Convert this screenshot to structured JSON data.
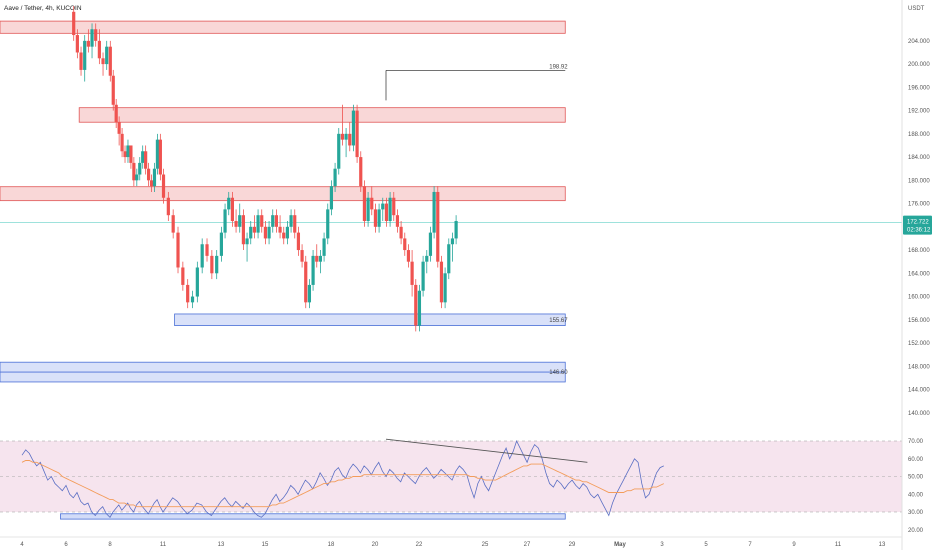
{
  "header": {
    "title": "Aave / Tether, 4h, KUCOIN",
    "currency": "USDT"
  },
  "price_tag": {
    "value": "172.722",
    "countdown": "02:36:12"
  },
  "colors": {
    "up": "#26a69a",
    "down": "#ef5350",
    "resistance_fill": "#f8d0d0",
    "resistance_stroke": "#e05555",
    "support_fill": "#d2dcf8",
    "support_stroke": "#4a6fd6",
    "rsi_line": "#5b6fc4",
    "rsi_ma": "#f39c5a",
    "rsi_band": "#f6e4ee",
    "current_line": "#7fd8d0",
    "trendline": "#555555"
  },
  "chart_data": [
    {
      "type": "candlestick",
      "title": "Aave / Tether, 4h, KUCOIN",
      "y_axis_unit": "USDT",
      "ylim": [
        136,
        210
      ],
      "y_ticks": [
        "140.000",
        "144.000",
        "148.000",
        "152.000",
        "156.000",
        "160.000",
        "164.000",
        "168.000",
        "172.000",
        "176.000",
        "180.000",
        "184.000",
        "188.000",
        "192.000",
        "196.000",
        "200.000",
        "204.000"
      ],
      "x_ticks": [
        "4",
        "6",
        "8",
        "11",
        "13",
        "15",
        "18",
        "20",
        "22",
        "25",
        "27",
        "29",
        "May",
        "3",
        "5",
        "7",
        "9",
        "11",
        "13"
      ],
      "current_price": 172.722,
      "zones": [
        {
          "kind": "resistance",
          "from": 205.3,
          "to": 207.4,
          "start_day": 4.0,
          "end_day": 28.7
        },
        {
          "kind": "resistance",
          "from": 190.0,
          "to": 192.5,
          "start_day": 6.6,
          "end_day": 28.7
        },
        {
          "kind": "resistance",
          "from": 176.5,
          "to": 178.9,
          "start_day": 4.0,
          "end_day": 28.7
        },
        {
          "kind": "support",
          "from": 155.0,
          "to": 157.0,
          "start_day": 11.4,
          "end_day": 28.7,
          "label": "155.67"
        },
        {
          "kind": "support",
          "from": 145.3,
          "to": 148.7,
          "start_day": 4.0,
          "end_day": 28.7,
          "label": "146.60",
          "midline": 147.0
        }
      ],
      "annotations": [
        {
          "type": "hline",
          "value": 198.92,
          "label": "198.92",
          "start_day": 20.5,
          "end_day": 28.7
        }
      ],
      "candles_start_day": 6.35,
      "candles_step_days": 0.1667,
      "ohlc": [
        [
          209,
          210,
          204,
          205
        ],
        [
          205,
          206,
          201,
          202
        ],
        [
          202,
          203,
          198,
          199
        ],
        [
          199,
          205,
          197,
          204
        ],
        [
          204,
          206,
          202,
          203
        ],
        [
          203,
          207,
          201,
          206
        ],
        [
          206,
          207,
          203,
          204
        ],
        [
          204,
          206,
          200,
          201
        ],
        [
          201,
          202,
          198,
          200
        ],
        [
          200,
          204,
          199,
          203
        ],
        [
          203,
          204,
          197,
          198
        ],
        [
          198,
          199,
          192,
          193
        ],
        [
          193,
          194,
          189,
          190
        ],
        [
          190,
          191,
          186,
          188
        ],
        [
          188,
          189,
          184,
          185
        ],
        [
          185,
          186,
          183,
          184
        ],
        [
          184,
          187,
          183,
          186
        ],
        [
          186,
          186,
          182,
          183
        ],
        [
          183,
          184,
          179,
          180
        ],
        [
          180,
          182,
          179,
          181
        ],
        [
          181,
          184,
          180,
          183
        ],
        [
          183,
          186,
          182,
          185
        ],
        [
          185,
          186,
          181,
          182
        ],
        [
          182,
          183,
          179,
          180
        ],
        [
          180,
          181,
          178,
          179
        ],
        [
          179,
          183,
          178,
          182
        ],
        [
          182,
          188,
          181,
          187
        ],
        [
          187,
          188,
          180,
          181
        ],
        [
          181,
          182,
          176,
          177
        ],
        [
          177,
          178,
          173,
          174
        ],
        [
          174,
          175,
          170,
          171
        ],
        [
          171,
          172,
          164,
          165
        ],
        [
          165,
          166,
          161,
          162
        ],
        [
          162,
          163,
          158,
          159
        ],
        [
          159,
          161,
          158,
          160
        ],
        [
          160,
          166,
          159,
          165
        ],
        [
          165,
          170,
          164,
          169
        ],
        [
          169,
          170,
          166,
          167
        ],
        [
          167,
          168,
          163,
          164
        ],
        [
          164,
          168,
          163,
          167
        ],
        [
          167,
          172,
          166,
          171
        ],
        [
          171,
          176,
          170,
          175
        ],
        [
          175,
          178,
          174,
          177
        ],
        [
          177,
          178,
          172,
          173
        ],
        [
          173,
          175,
          171,
          172
        ],
        [
          172,
          176,
          171,
          174
        ],
        [
          174,
          175,
          168,
          169
        ],
        [
          169,
          171,
          166,
          170
        ],
        [
          170,
          173,
          169,
          172
        ],
        [
          172,
          174,
          170,
          171
        ],
        [
          171,
          175,
          170,
          174
        ],
        [
          174,
          175,
          171,
          172
        ],
        [
          172,
          173,
          169,
          170
        ],
        [
          170,
          173,
          169,
          172
        ],
        [
          172,
          175,
          171,
          174
        ],
        [
          174,
          175,
          171,
          172
        ],
        [
          172,
          174,
          170,
          171
        ],
        [
          171,
          172,
          169,
          170
        ],
        [
          170,
          173,
          169,
          172
        ],
        [
          172,
          175,
          171,
          174
        ],
        [
          174,
          175,
          170,
          171
        ],
        [
          171,
          172,
          167,
          168
        ],
        [
          168,
          169,
          165,
          166
        ],
        [
          166,
          167,
          158,
          159
        ],
        [
          159,
          163,
          158,
          162
        ],
        [
          162,
          168,
          161,
          167
        ],
        [
          167,
          169,
          165,
          166
        ],
        [
          166,
          168,
          164,
          167
        ],
        [
          167,
          171,
          166,
          170
        ],
        [
          170,
          176,
          169,
          175
        ],
        [
          175,
          180,
          174,
          179
        ],
        [
          179,
          183,
          178,
          182
        ],
        [
          182,
          189,
          181,
          188
        ],
        [
          188,
          193,
          186,
          187
        ],
        [
          187,
          189,
          184,
          188
        ],
        [
          188,
          190,
          185,
          186
        ],
        [
          186,
          193,
          185,
          192
        ],
        [
          192,
          193,
          183,
          184
        ],
        [
          184,
          185,
          178,
          179
        ],
        [
          179,
          180,
          172,
          173
        ],
        [
          173,
          178,
          172,
          177
        ],
        [
          177,
          179,
          174,
          175
        ],
        [
          175,
          176,
          171,
          172
        ],
        [
          172,
          176,
          171,
          175
        ],
        [
          175,
          177,
          173,
          176
        ],
        [
          176,
          177,
          172,
          173
        ],
        [
          173,
          178,
          172,
          177
        ],
        [
          177,
          178,
          173,
          174
        ],
        [
          174,
          175,
          171,
          172
        ],
        [
          172,
          173,
          169,
          170
        ],
        [
          170,
          171,
          167,
          168
        ],
        [
          168,
          169,
          165,
          166
        ],
        [
          166,
          168,
          160,
          162
        ],
        [
          162,
          163,
          154,
          155
        ],
        [
          155,
          162,
          154,
          161
        ],
        [
          161,
          167,
          160,
          166
        ],
        [
          166,
          168,
          164,
          167
        ],
        [
          167,
          172,
          166,
          171
        ],
        [
          171,
          179,
          170,
          178
        ],
        [
          178,
          179,
          165,
          166
        ],
        [
          166,
          167,
          158,
          159
        ],
        [
          159,
          165,
          158,
          164
        ],
        [
          164,
          170,
          163,
          169
        ],
        [
          169,
          171,
          166,
          170
        ],
        [
          170,
          174,
          169,
          173
        ]
      ]
    },
    {
      "type": "line",
      "title": "RSI",
      "ylim": [
        17,
        72
      ],
      "y_ticks": [
        "20.00",
        "30.00",
        "40.00",
        "50.00",
        "60.00",
        "70.00"
      ],
      "band": [
        30,
        70
      ],
      "midline": 50,
      "series_start_day": 4.0,
      "series_step_days": 0.1667,
      "series": [
        {
          "values": [
            62,
            65,
            63,
            59,
            56,
            58,
            53,
            48,
            50,
            46,
            44,
            42,
            45,
            40,
            38,
            41,
            36,
            34,
            35,
            30,
            28,
            31,
            33,
            29,
            27,
            30,
            32,
            34,
            31,
            33,
            35,
            32,
            30,
            34,
            36,
            33,
            31,
            29,
            32,
            35,
            37,
            33,
            30,
            34,
            38,
            36,
            32,
            29,
            31,
            35,
            34,
            30,
            28,
            32,
            36,
            38,
            35,
            33,
            36,
            34,
            32,
            35,
            33,
            30,
            28,
            27,
            29,
            33,
            37,
            40,
            36,
            38,
            41,
            45,
            43,
            40,
            44,
            48,
            46,
            43,
            47,
            52,
            49,
            45,
            48,
            53,
            55,
            51,
            49,
            54,
            57,
            55,
            52,
            56,
            54,
            51,
            55,
            58,
            53,
            50,
            54,
            52,
            49,
            47,
            52,
            50,
            48,
            46,
            50,
            53,
            55,
            52,
            49,
            51,
            54,
            52,
            50,
            48,
            53,
            56,
            54,
            51,
            44,
            38,
            46,
            50,
            45,
            42,
            47,
            52,
            57,
            62,
            66,
            60,
            64,
            70,
            66,
            62,
            58,
            64,
            68,
            66,
            60,
            52,
            46,
            44,
            48,
            46,
            43,
            46,
            48,
            45,
            43,
            46,
            44,
            40,
            38,
            40,
            36,
            32,
            28,
            35,
            40,
            44,
            48,
            52,
            56,
            60,
            58,
            46,
            38,
            40,
            46,
            52,
            55,
            56
          ]
        },
        {
          "values": [
            58,
            59,
            59,
            58,
            58,
            57,
            56,
            55,
            54,
            53,
            52,
            50,
            49,
            48,
            47,
            46,
            45,
            44,
            43,
            42,
            41,
            40,
            39,
            38,
            37,
            37,
            36,
            35,
            35,
            35,
            34,
            34,
            34,
            33,
            33,
            33,
            33,
            33,
            33,
            33,
            33,
            33,
            33,
            33,
            33,
            33,
            33,
            33,
            33,
            33,
            33,
            33,
            33,
            33,
            33,
            33,
            33,
            33,
            33,
            33,
            33,
            33,
            33,
            33,
            33,
            33,
            33,
            33,
            34,
            34,
            35,
            35,
            36,
            37,
            38,
            39,
            40,
            41,
            42,
            43,
            44,
            45,
            46,
            46,
            47,
            47,
            48,
            48,
            49,
            49,
            50,
            50,
            50,
            51,
            51,
            51,
            51,
            51,
            51,
            51,
            51,
            51,
            51,
            51,
            51,
            51,
            51,
            51,
            51,
            51,
            51,
            51,
            51,
            51,
            51,
            51,
            51,
            51,
            51,
            51,
            51,
            51,
            50,
            50,
            49,
            49,
            48,
            48,
            48,
            48,
            49,
            50,
            51,
            52,
            53,
            54,
            55,
            56,
            56,
            57,
            57,
            57,
            57,
            56,
            55,
            54,
            53,
            52,
            51,
            50,
            49,
            48,
            48,
            47,
            47,
            46,
            45,
            44,
            43,
            42,
            41,
            41,
            41,
            41,
            41,
            42,
            42,
            43,
            43,
            43,
            43,
            43,
            44,
            44,
            45,
            46
          ]
        }
      ],
      "zones": [
        {
          "kind": "support",
          "from": 26,
          "to": 29,
          "start_day": 5.75,
          "end_day": 28.7
        }
      ],
      "trendline": {
        "from": [
          20.5,
          71
        ],
        "to": [
          29.7,
          58
        ]
      }
    }
  ]
}
